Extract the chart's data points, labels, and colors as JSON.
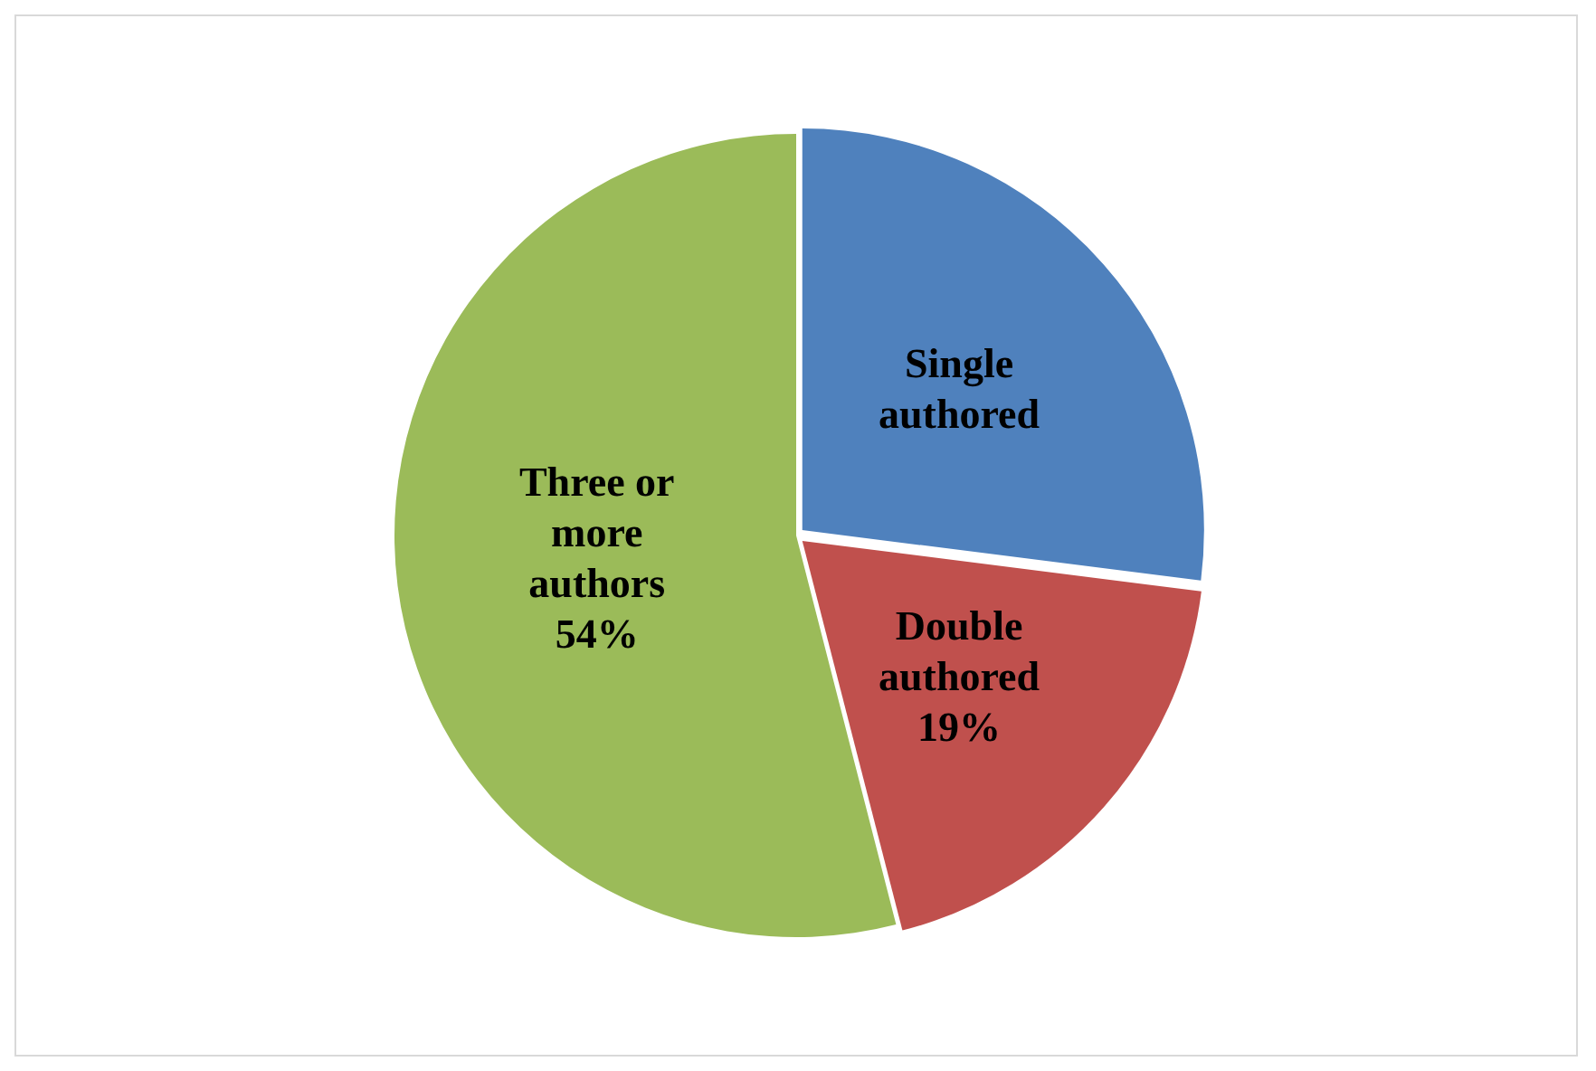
{
  "chart_data": {
    "type": "pie",
    "categories": [
      "Single authored",
      "Double authored",
      "Three or more authors"
    ],
    "values": [
      27,
      19,
      54
    ],
    "colors": [
      "#4f81bd",
      "#c0504d",
      "#9bbb59"
    ],
    "value_labels": [
      null,
      "19%",
      "54%"
    ],
    "legend": false
  }
}
